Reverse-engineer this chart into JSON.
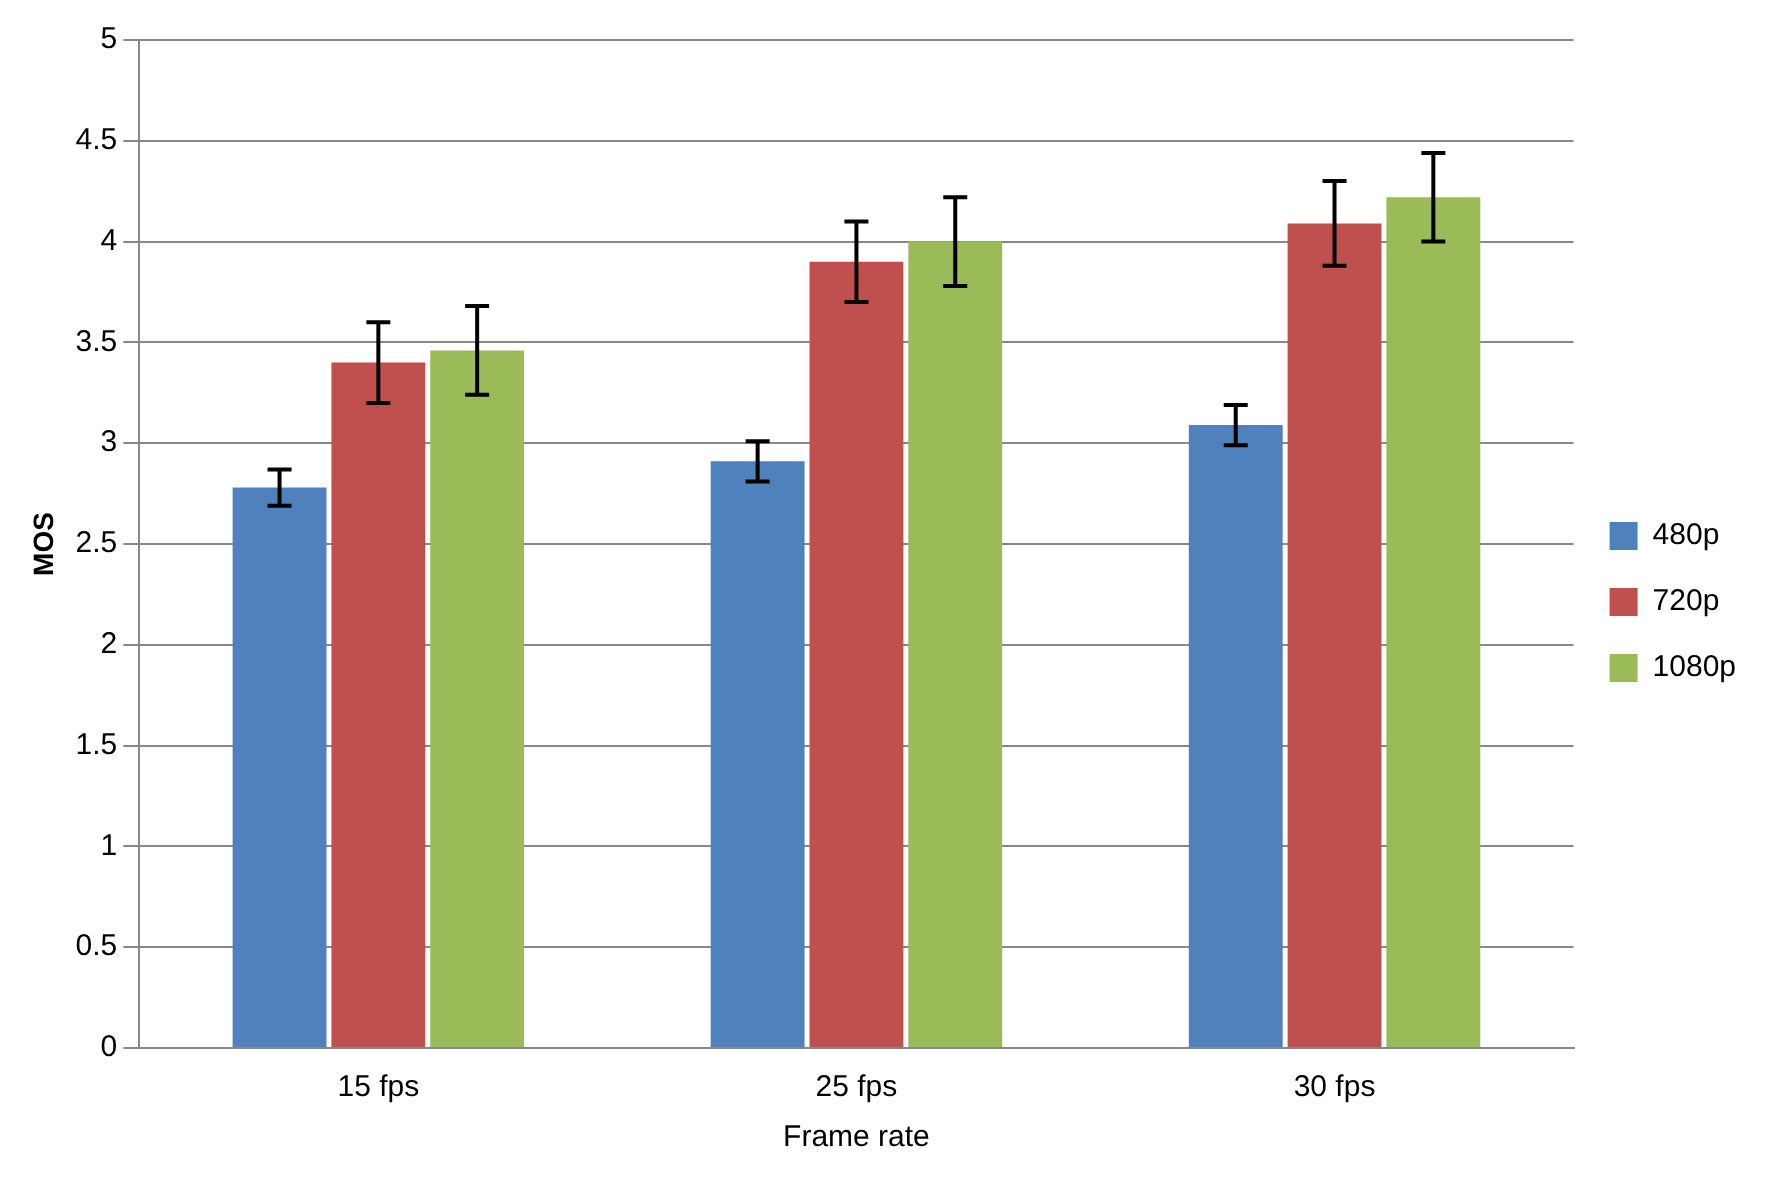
{
  "chart_data": {
    "type": "bar",
    "xlabel": "Frame rate",
    "ylabel": "MOS",
    "categories": [
      "15 fps",
      "25 fps",
      "30 fps"
    ],
    "series": [
      {
        "name": "480p",
        "color": "#4f81bd",
        "values": [
          2.78,
          2.91,
          3.09
        ],
        "errors": [
          0.09,
          0.1,
          0.1
        ]
      },
      {
        "name": "720p",
        "color": "#c0504d",
        "values": [
          3.4,
          3.9,
          4.09
        ],
        "errors": [
          0.2,
          0.2,
          0.21
        ]
      },
      {
        "name": "1080p",
        "color": "#9bbb59",
        "values": [
          3.46,
          4.0,
          4.22
        ],
        "errors": [
          0.22,
          0.22,
          0.22
        ]
      }
    ],
    "ylim": [
      0,
      5
    ],
    "yticks": [
      0,
      0.5,
      1,
      1.5,
      2,
      2.5,
      3,
      3.5,
      4,
      4.5,
      5
    ],
    "grid": "y",
    "legend": "right"
  }
}
